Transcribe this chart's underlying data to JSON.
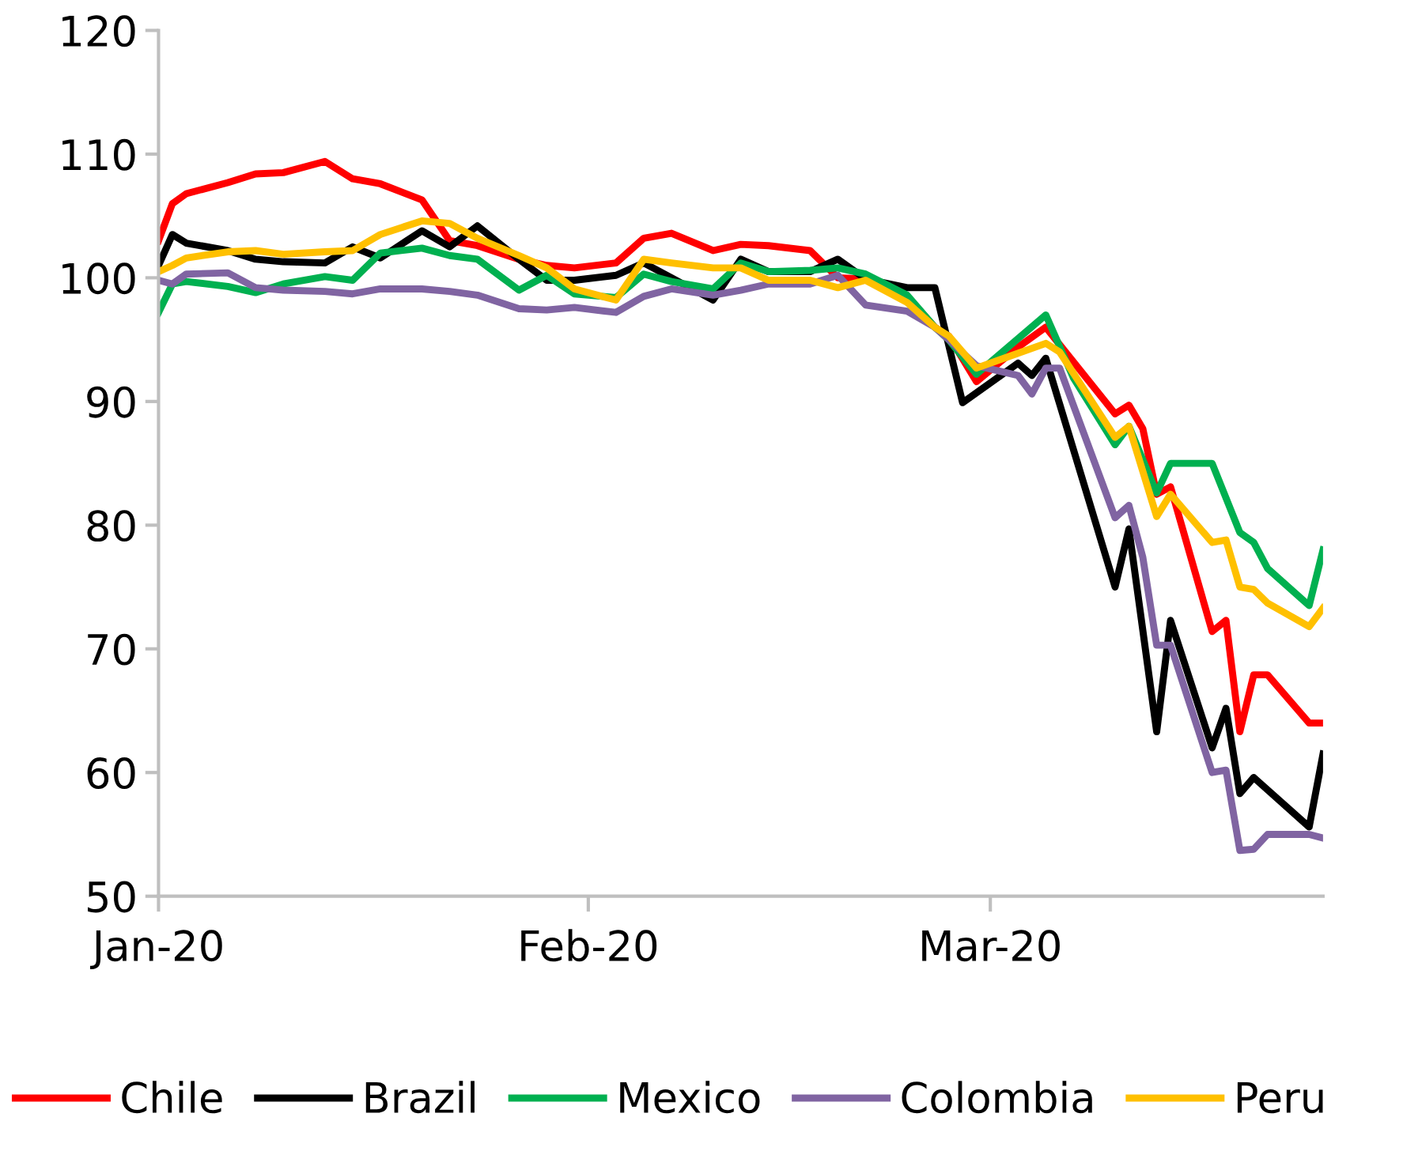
{
  "chart_data": {
    "type": "line",
    "ylim": [
      50,
      120
    ],
    "yticks": [
      50,
      60,
      70,
      80,
      90,
      100,
      110,
      120
    ],
    "xlim": [
      "2020-01-01",
      "2020-03-25"
    ],
    "xticks": [
      {
        "value": "2020-01-01",
        "label": "Jan-20"
      },
      {
        "value": "2020-02-01",
        "label": "Feb-20"
      },
      {
        "value": "2020-03-01",
        "label": "Mar-20"
      }
    ],
    "grid": false,
    "legend": "bottom",
    "marker": "none",
    "line_style": "solid",
    "series": [
      {
        "name": "Chile",
        "color": "#ff0000",
        "x": [
          "2020-01-01",
          "2020-01-02",
          "2020-01-03",
          "2020-01-06",
          "2020-01-08",
          "2020-01-10",
          "2020-01-13",
          "2020-01-15",
          "2020-01-17",
          "2020-01-20",
          "2020-01-22",
          "2020-01-24",
          "2020-01-27",
          "2020-01-29",
          "2020-01-31",
          "2020-02-03",
          "2020-02-05",
          "2020-02-07",
          "2020-02-10",
          "2020-02-12",
          "2020-02-14",
          "2020-02-17",
          "2020-02-19",
          "2020-02-21",
          "2020-02-24",
          "2020-02-26",
          "2020-02-27",
          "2020-02-29",
          "2020-03-03",
          "2020-03-05",
          "2020-03-10",
          "2020-03-11",
          "2020-03-12",
          "2020-03-13",
          "2020-03-14",
          "2020-03-17",
          "2020-03-18",
          "2020-03-19",
          "2020-03-20",
          "2020-03-21",
          "2020-03-24",
          "2020-03-25"
        ],
        "values": [
          103,
          106,
          106.8,
          107.7,
          108.4,
          108.5,
          109.4,
          108,
          107.6,
          106.3,
          103,
          102.6,
          101.5,
          101,
          100.8,
          101.2,
          103.2,
          103.6,
          102.2,
          102.7,
          102.6,
          102.2,
          100,
          99.9,
          98.5,
          96,
          95.3,
          91.6,
          94.4,
          96,
          89,
          89.7,
          87.8,
          82.5,
          83.1,
          71.4,
          72.3,
          63.3,
          67.9,
          67.9,
          64,
          64
        ]
      },
      {
        "name": "Brazil",
        "color": "#000000",
        "x": [
          "2020-01-01",
          "2020-01-02",
          "2020-01-03",
          "2020-01-06",
          "2020-01-08",
          "2020-01-10",
          "2020-01-13",
          "2020-01-15",
          "2020-01-17",
          "2020-01-20",
          "2020-01-22",
          "2020-01-24",
          "2020-01-27",
          "2020-01-29",
          "2020-01-31",
          "2020-02-03",
          "2020-02-05",
          "2020-02-07",
          "2020-02-10",
          "2020-02-12",
          "2020-02-14",
          "2020-02-17",
          "2020-02-19",
          "2020-02-21",
          "2020-02-24",
          "2020-02-26",
          "2020-02-28",
          "2020-03-03",
          "2020-03-04",
          "2020-03-05",
          "2020-03-10",
          "2020-03-11",
          "2020-03-13",
          "2020-03-14",
          "2020-03-17",
          "2020-03-18",
          "2020-03-19",
          "2020-03-20",
          "2020-03-24",
          "2020-03-25"
        ],
        "values": [
          101,
          103.5,
          102.8,
          102.2,
          101.5,
          101.3,
          101.2,
          102.5,
          101.6,
          103.8,
          102.5,
          104.2,
          101.5,
          99.8,
          99.8,
          100.2,
          101.2,
          100,
          98.2,
          101.5,
          100.5,
          100.5,
          101.5,
          99.9,
          99.2,
          99.2,
          89.9,
          93.1,
          92.1,
          93.5,
          75,
          79.7,
          63.3,
          72.3,
          62,
          65.2,
          58.3,
          59.6,
          55.6,
          61.5
        ]
      },
      {
        "name": "Mexico",
        "color": "#00b050",
        "x": [
          "2020-01-01",
          "2020-01-02",
          "2020-01-03",
          "2020-01-06",
          "2020-01-08",
          "2020-01-10",
          "2020-01-13",
          "2020-01-15",
          "2020-01-17",
          "2020-01-20",
          "2020-01-22",
          "2020-01-24",
          "2020-01-27",
          "2020-01-29",
          "2020-01-31",
          "2020-02-03",
          "2020-02-05",
          "2020-02-07",
          "2020-02-10",
          "2020-02-12",
          "2020-02-14",
          "2020-02-17",
          "2020-02-19",
          "2020-02-21",
          "2020-02-24",
          "2020-02-26",
          "2020-02-27",
          "2020-02-29",
          "2020-03-05",
          "2020-03-07",
          "2020-03-10",
          "2020-03-11",
          "2020-03-13",
          "2020-03-14",
          "2020-03-17",
          "2020-03-19",
          "2020-03-20",
          "2020-03-21",
          "2020-03-24",
          "2020-03-25"
        ],
        "values": [
          97.2,
          99.5,
          99.7,
          99.3,
          98.8,
          99.5,
          100.1,
          99.8,
          102,
          102.4,
          101.8,
          101.5,
          99,
          100.2,
          98.7,
          98.4,
          100.3,
          99.7,
          99.1,
          101.2,
          100.5,
          100.6,
          100.8,
          100.3,
          98.6,
          96,
          95,
          92.2,
          97,
          91.9,
          86.5,
          88,
          82.6,
          85,
          85,
          79.4,
          78.6,
          76.5,
          73.5,
          78
        ]
      },
      {
        "name": "Colombia",
        "color": "#8064a2",
        "x": [
          "2020-01-01",
          "2020-01-02",
          "2020-01-03",
          "2020-01-06",
          "2020-01-08",
          "2020-01-10",
          "2020-01-13",
          "2020-01-15",
          "2020-01-17",
          "2020-01-20",
          "2020-01-22",
          "2020-01-24",
          "2020-01-27",
          "2020-01-29",
          "2020-01-31",
          "2020-02-03",
          "2020-02-05",
          "2020-02-07",
          "2020-02-10",
          "2020-02-12",
          "2020-02-14",
          "2020-02-17",
          "2020-02-19",
          "2020-02-21",
          "2020-02-24",
          "2020-02-26",
          "2020-02-27",
          "2020-02-29",
          "2020-03-03",
          "2020-03-04",
          "2020-03-05",
          "2020-03-06",
          "2020-03-10",
          "2020-03-11",
          "2020-03-12",
          "2020-03-13",
          "2020-03-14",
          "2020-03-17",
          "2020-03-18",
          "2020-03-19",
          "2020-03-20",
          "2020-03-21",
          "2020-03-24",
          "2020-03-25"
        ],
        "values": [
          99.8,
          99.5,
          100.3,
          100.4,
          99.2,
          99,
          98.9,
          98.7,
          99.1,
          99.1,
          98.9,
          98.6,
          97.5,
          97.4,
          97.6,
          97.2,
          98.5,
          99.1,
          98.6,
          99,
          99.5,
          99.5,
          100.2,
          97.8,
          97.3,
          96,
          95,
          92.9,
          92.1,
          90.6,
          92.7,
          92.7,
          80.6,
          81.6,
          77.4,
          70.3,
          70.3,
          60,
          60.2,
          53.7,
          53.8,
          55,
          55,
          54.7
        ]
      },
      {
        "name": "Peru",
        "color": "#ffc000",
        "x": [
          "2020-01-01",
          "2020-01-02",
          "2020-01-03",
          "2020-01-06",
          "2020-01-08",
          "2020-01-10",
          "2020-01-13",
          "2020-01-15",
          "2020-01-17",
          "2020-01-20",
          "2020-01-22",
          "2020-01-24",
          "2020-01-27",
          "2020-01-29",
          "2020-01-31",
          "2020-02-03",
          "2020-02-05",
          "2020-02-07",
          "2020-02-10",
          "2020-02-12",
          "2020-02-14",
          "2020-02-17",
          "2020-02-19",
          "2020-02-21",
          "2020-02-24",
          "2020-02-26",
          "2020-02-27",
          "2020-02-29",
          "2020-03-05",
          "2020-03-06",
          "2020-03-10",
          "2020-03-11",
          "2020-03-13",
          "2020-03-14",
          "2020-03-17",
          "2020-03-18",
          "2020-03-19",
          "2020-03-20",
          "2020-03-21",
          "2020-03-24",
          "2020-03-25"
        ],
        "values": [
          100.5,
          101,
          101.6,
          102.1,
          102.2,
          101.9,
          102.1,
          102.2,
          103.5,
          104.6,
          104.4,
          103.2,
          101.8,
          100.8,
          99.1,
          98.2,
          101.5,
          101.2,
          100.8,
          100.8,
          99.8,
          99.8,
          99.2,
          99.8,
          98,
          96,
          95.3,
          92.7,
          94.7,
          94,
          87.1,
          88,
          80.7,
          82.5,
          78.6,
          78.8,
          75,
          74.8,
          73.7,
          71.8,
          73.3
        ]
      }
    ]
  }
}
